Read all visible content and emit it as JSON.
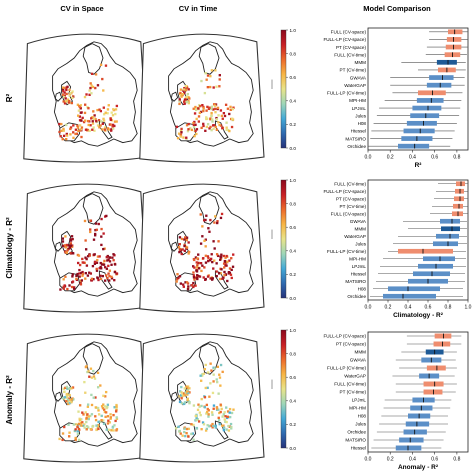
{
  "column_titles": [
    "CV in Space",
    "CV in Time",
    "Model Comparison"
  ],
  "row_labels": [
    "R²",
    "Climatology - R²",
    "Anomaly - R²"
  ],
  "colorbar_ticks": [
    "0.0",
    "0.2",
    "0.4",
    "0.6",
    "0.8",
    "1.0"
  ],
  "colorbar_colors": [
    "#26327a",
    "#2f6bb0",
    "#45aad6",
    "#9fd6b8",
    "#e9e48a",
    "#f7b545",
    "#ec6a2b",
    "#c81f26",
    "#8b0a1e"
  ],
  "map_style": {
    "land_outline": "#222222",
    "fill": "#ffffff"
  },
  "chart_data": [
    {
      "type": "boxplot",
      "title": "Model Comparison",
      "xlabel": "R²",
      "xlim": [
        0,
        0.9
      ],
      "xticks": [
        "0.0",
        "0.2",
        "0.4",
        "0.6",
        "0.8"
      ],
      "series": [
        {
          "name": "FULL (CV-space)",
          "color": "#ef8d6e",
          "min": 0.55,
          "q1": 0.72,
          "median": 0.78,
          "q3": 0.85,
          "max": 0.9
        },
        {
          "name": "FULL-LP (CV-space)",
          "color": "#ef8d6e",
          "min": 0.55,
          "q1": 0.71,
          "median": 0.77,
          "q3": 0.84,
          "max": 0.9
        },
        {
          "name": "PT (CV-space)",
          "color": "#ef8d6e",
          "min": 0.53,
          "q1": 0.7,
          "median": 0.77,
          "q3": 0.84,
          "max": 0.9
        },
        {
          "name": "FULL (CV-time)",
          "color": "#ef8d6e",
          "min": 0.52,
          "q1": 0.69,
          "median": 0.76,
          "q3": 0.83,
          "max": 0.89
        },
        {
          "name": "MMM",
          "color": "#1e5a96",
          "min": 0.3,
          "q1": 0.62,
          "median": 0.72,
          "q3": 0.8,
          "max": 0.88
        },
        {
          "name": "PT (CV-time)",
          "color": "#ef8d6e",
          "min": 0.45,
          "q1": 0.63,
          "median": 0.71,
          "q3": 0.79,
          "max": 0.88
        },
        {
          "name": "GWAVA",
          "color": "#5b8fc7",
          "min": 0.2,
          "q1": 0.55,
          "median": 0.67,
          "q3": 0.77,
          "max": 0.87
        },
        {
          "name": "WaterGAP",
          "color": "#5b8fc7",
          "min": 0.2,
          "q1": 0.53,
          "median": 0.65,
          "q3": 0.75,
          "max": 0.87
        },
        {
          "name": "FULL-LP (CV-time)",
          "color": "#ef8d6e",
          "min": 0.22,
          "q1": 0.45,
          "median": 0.58,
          "q3": 0.7,
          "max": 0.85
        },
        {
          "name": "MPI-HM",
          "color": "#5b8fc7",
          "min": 0.15,
          "q1": 0.44,
          "median": 0.57,
          "q3": 0.68,
          "max": 0.84
        },
        {
          "name": "LPJmL",
          "color": "#5b8fc7",
          "min": 0.1,
          "q1": 0.4,
          "median": 0.54,
          "q3": 0.66,
          "max": 0.83
        },
        {
          "name": "Jules",
          "color": "#5b8fc7",
          "min": 0.08,
          "q1": 0.38,
          "median": 0.52,
          "q3": 0.64,
          "max": 0.82
        },
        {
          "name": "H08",
          "color": "#5b8fc7",
          "min": 0.05,
          "q1": 0.35,
          "median": 0.5,
          "q3": 0.62,
          "max": 0.8
        },
        {
          "name": "Htessel",
          "color": "#5b8fc7",
          "min": 0.03,
          "q1": 0.32,
          "median": 0.47,
          "q3": 0.6,
          "max": 0.78
        },
        {
          "name": "MATSIRO",
          "color": "#5b8fc7",
          "min": 0.02,
          "q1": 0.3,
          "median": 0.44,
          "q3": 0.58,
          "max": 0.76
        },
        {
          "name": "Orchidee",
          "color": "#5b8fc7",
          "min": 0.0,
          "q1": 0.27,
          "median": 0.42,
          "q3": 0.55,
          "max": 0.74
        }
      ]
    },
    {
      "type": "boxplot",
      "title": "",
      "xlabel": "Climatology - R²",
      "xlim": [
        0,
        1.0
      ],
      "xticks": [
        "0.0",
        "0.2",
        "0.4",
        "0.6",
        "0.8",
        "1.0"
      ],
      "series": [
        {
          "name": "FULL (CV-time)",
          "color": "#ef8d6e",
          "min": 0.7,
          "q1": 0.88,
          "median": 0.93,
          "q3": 0.97,
          "max": 1.0
        },
        {
          "name": "FULL-LP (CV-space)",
          "color": "#ef8d6e",
          "min": 0.68,
          "q1": 0.87,
          "median": 0.92,
          "q3": 0.96,
          "max": 1.0
        },
        {
          "name": "PT (CV-space)",
          "color": "#ef8d6e",
          "min": 0.66,
          "q1": 0.86,
          "median": 0.92,
          "q3": 0.96,
          "max": 1.0
        },
        {
          "name": "PT (CV-time)",
          "color": "#ef8d6e",
          "min": 0.64,
          "q1": 0.85,
          "median": 0.91,
          "q3": 0.95,
          "max": 1.0
        },
        {
          "name": "FULL (CV-space)",
          "color": "#ef8d6e",
          "min": 0.62,
          "q1": 0.84,
          "median": 0.9,
          "q3": 0.95,
          "max": 1.0
        },
        {
          "name": "GWAVA",
          "color": "#5b8fc7",
          "min": 0.35,
          "q1": 0.72,
          "median": 0.84,
          "q3": 0.92,
          "max": 0.99
        },
        {
          "name": "MMM",
          "color": "#1e5a96",
          "min": 0.4,
          "q1": 0.73,
          "median": 0.84,
          "q3": 0.92,
          "max": 0.99
        },
        {
          "name": "WaterGAP",
          "color": "#5b8fc7",
          "min": 0.3,
          "q1": 0.68,
          "median": 0.82,
          "q3": 0.91,
          "max": 0.99
        },
        {
          "name": "Jules",
          "color": "#5b8fc7",
          "min": 0.25,
          "q1": 0.65,
          "median": 0.8,
          "q3": 0.9,
          "max": 0.99
        },
        {
          "name": "FULL-LP (CV-time)",
          "color": "#ef8d6e",
          "min": 0.2,
          "q1": 0.3,
          "median": 0.55,
          "q3": 0.85,
          "max": 0.98
        },
        {
          "name": "MPI-HM",
          "color": "#5b8fc7",
          "min": 0.15,
          "q1": 0.55,
          "median": 0.72,
          "q3": 0.87,
          "max": 0.98
        },
        {
          "name": "LPJmL",
          "color": "#5b8fc7",
          "min": 0.12,
          "q1": 0.5,
          "median": 0.68,
          "q3": 0.85,
          "max": 0.98
        },
        {
          "name": "Htessel",
          "color": "#5b8fc7",
          "min": 0.1,
          "q1": 0.45,
          "median": 0.64,
          "q3": 0.82,
          "max": 0.97
        },
        {
          "name": "MATSIRO",
          "color": "#5b8fc7",
          "min": 0.08,
          "q1": 0.4,
          "median": 0.6,
          "q3": 0.8,
          "max": 0.97
        },
        {
          "name": "H08",
          "color": "#5b8fc7",
          "min": 0.05,
          "q1": 0.2,
          "median": 0.4,
          "q3": 0.72,
          "max": 0.95
        },
        {
          "name": "Orchidee",
          "color": "#5b8fc7",
          "min": 0.02,
          "q1": 0.15,
          "median": 0.35,
          "q3": 0.68,
          "max": 0.95
        }
      ]
    },
    {
      "type": "boxplot",
      "title": "",
      "xlabel": "Anomaly - R²",
      "xlim": [
        0,
        0.9
      ],
      "xticks": [
        "0.0",
        "0.2",
        "0.4",
        "0.6",
        "0.8"
      ],
      "series": [
        {
          "name": "FULL-LP (CV-space)",
          "color": "#ef8d6e",
          "min": 0.35,
          "q1": 0.6,
          "median": 0.68,
          "q3": 0.75,
          "max": 0.84
        },
        {
          "name": "PT (CV-space)",
          "color": "#ef8d6e",
          "min": 0.35,
          "q1": 0.59,
          "median": 0.67,
          "q3": 0.74,
          "max": 0.84
        },
        {
          "name": "MMM",
          "color": "#1e5a96",
          "min": 0.3,
          "q1": 0.52,
          "median": 0.6,
          "q3": 0.68,
          "max": 0.8
        },
        {
          "name": "GWAVA",
          "color": "#5b8fc7",
          "min": 0.25,
          "q1": 0.48,
          "median": 0.57,
          "q3": 0.66,
          "max": 0.79
        },
        {
          "name": "FULL-LP (CV-time)",
          "color": "#ef8d6e",
          "min": 0.28,
          "q1": 0.53,
          "median": 0.62,
          "q3": 0.7,
          "max": 0.8
        },
        {
          "name": "WaterGAP",
          "color": "#5b8fc7",
          "min": 0.22,
          "q1": 0.46,
          "median": 0.55,
          "q3": 0.64,
          "max": 0.78
        },
        {
          "name": "FULL (CV-time)",
          "color": "#ef8d6e",
          "min": 0.25,
          "q1": 0.5,
          "median": 0.6,
          "q3": 0.68,
          "max": 0.8
        },
        {
          "name": "PT (CV-time)",
          "color": "#ef8d6e",
          "min": 0.25,
          "q1": 0.5,
          "median": 0.59,
          "q3": 0.67,
          "max": 0.79
        },
        {
          "name": "LPJmL",
          "color": "#5b8fc7",
          "min": 0.15,
          "q1": 0.4,
          "median": 0.5,
          "q3": 0.6,
          "max": 0.75
        },
        {
          "name": "MPI-HM",
          "color": "#5b8fc7",
          "min": 0.14,
          "q1": 0.38,
          "median": 0.48,
          "q3": 0.58,
          "max": 0.74
        },
        {
          "name": "H08",
          "color": "#5b8fc7",
          "min": 0.12,
          "q1": 0.36,
          "median": 0.46,
          "q3": 0.56,
          "max": 0.72
        },
        {
          "name": "Jules",
          "color": "#5b8fc7",
          "min": 0.1,
          "q1": 0.34,
          "median": 0.44,
          "q3": 0.55,
          "max": 0.72
        },
        {
          "name": "Orchidee",
          "color": "#5b8fc7",
          "min": 0.08,
          "q1": 0.32,
          "median": 0.42,
          "q3": 0.53,
          "max": 0.7
        },
        {
          "name": "MATSIRO",
          "color": "#5b8fc7",
          "min": 0.05,
          "q1": 0.28,
          "median": 0.38,
          "q3": 0.5,
          "max": 0.68
        },
        {
          "name": "Htessel",
          "color": "#5b8fc7",
          "min": 0.03,
          "q1": 0.25,
          "median": 0.36,
          "q3": 0.48,
          "max": 0.66
        }
      ]
    }
  ]
}
